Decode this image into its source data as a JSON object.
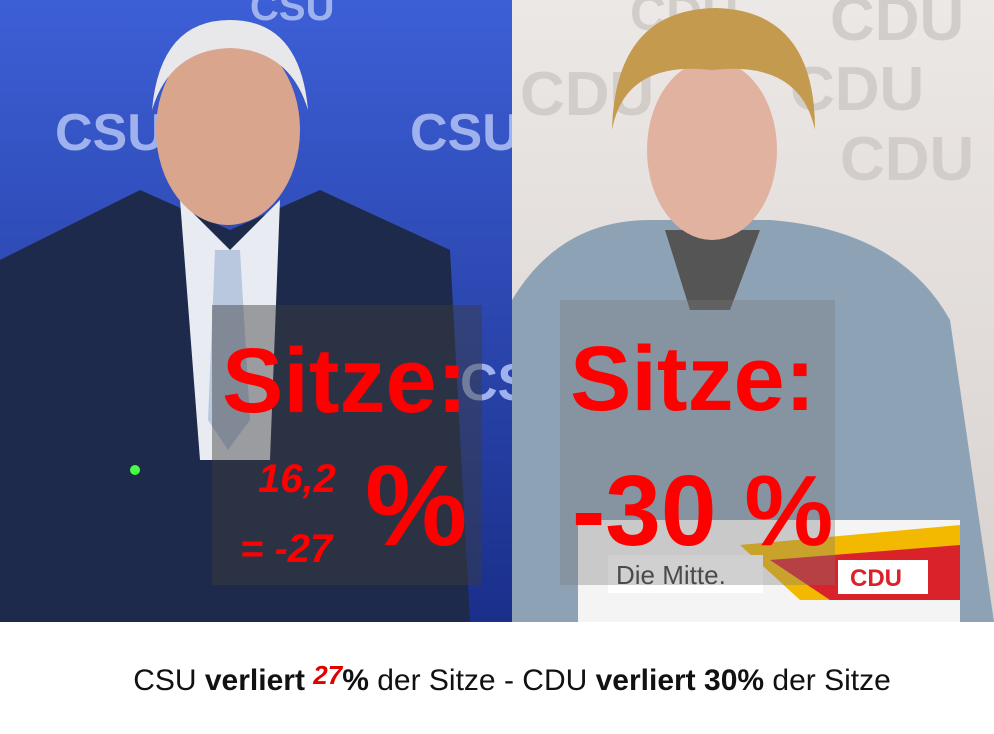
{
  "left_panel": {
    "backdrop_logos": [
      "CSU",
      "CSU",
      "CSU",
      "CSU"
    ],
    "overlay": {
      "heading": "Sitze:",
      "share": "16,2",
      "change": "= -27",
      "unit": "%"
    }
  },
  "right_panel": {
    "backdrop_logos": [
      "CDU",
      "CDU",
      "CDU",
      "CDU",
      "CDU"
    ],
    "overlay": {
      "heading": "Sitze:",
      "change": "-30 %"
    },
    "podium": {
      "slogan": "Die Mitte.",
      "logo": "CDU"
    }
  },
  "caption": {
    "parts": [
      "CSU ",
      "verliert ",
      "27",
      "%",
      " der Sitze - CDU ",
      "verliert 30%",
      " der Sitze"
    ]
  }
}
